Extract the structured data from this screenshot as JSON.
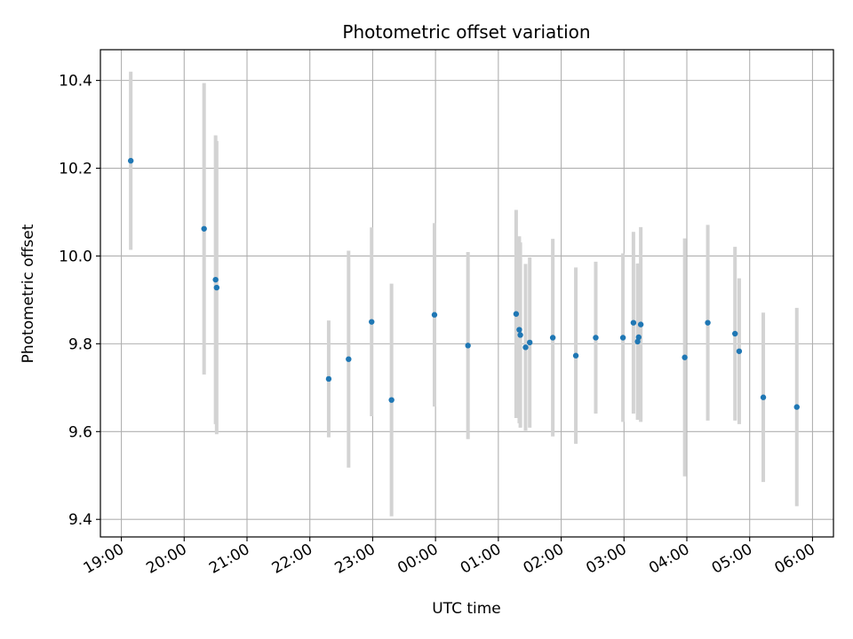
{
  "chart_data": {
    "type": "scatter",
    "title": "Photometric offset variation",
    "xlabel": "UTC time",
    "ylabel": "Photometric offset",
    "grid": true,
    "x_unit": "hours (UTC), continuing past midnight",
    "xlim": [
      "18:40",
      "06:20"
    ],
    "ylim": [
      9.36,
      10.47
    ],
    "xticks": [
      "19:00",
      "20:00",
      "21:00",
      "22:00",
      "23:00",
      "00:00",
      "01:00",
      "02:00",
      "03:00",
      "04:00",
      "05:00",
      "06:00"
    ],
    "yticks": [
      "9.4",
      "9.6",
      "9.8",
      "10.0",
      "10.2",
      "10.4"
    ],
    "colors": {
      "marker": "#1f77b4",
      "errorbar": "#d3d3d3",
      "grid": "#b0b0b0"
    },
    "points": [
      {
        "x": "19:09",
        "y": 10.217,
        "yerr": 0.203
      },
      {
        "x": "20:19",
        "y": 10.062,
        "yerr": 0.332
      },
      {
        "x": "20:30",
        "y": 9.946,
        "yerr": 0.329
      },
      {
        "x": "20:31",
        "y": 9.928,
        "yerr": 0.334
      },
      {
        "x": "22:18",
        "y": 9.72,
        "yerr": 0.133
      },
      {
        "x": "22:37",
        "y": 9.765,
        "yerr": 0.247
      },
      {
        "x": "22:59",
        "y": 9.85,
        "yerr": 0.215
      },
      {
        "x": "23:18",
        "y": 9.672,
        "yerr": 0.265
      },
      {
        "x": "23:59",
        "y": 9.866,
        "yerr": 0.209
      },
      {
        "x": "00:31",
        "y": 9.796,
        "yerr": 0.213
      },
      {
        "x": "01:17",
        "y": 9.868,
        "yerr": 0.237
      },
      {
        "x": "01:20",
        "y": 9.832,
        "yerr": 0.213
      },
      {
        "x": "01:21",
        "y": 9.82,
        "yerr": 0.211
      },
      {
        "x": "01:26",
        "y": 9.792,
        "yerr": 0.19
      },
      {
        "x": "01:30",
        "y": 9.803,
        "yerr": 0.194
      },
      {
        "x": "01:52",
        "y": 9.814,
        "yerr": 0.225
      },
      {
        "x": "02:14",
        "y": 9.773,
        "yerr": 0.201
      },
      {
        "x": "02:33",
        "y": 9.814,
        "yerr": 0.173
      },
      {
        "x": "02:59",
        "y": 9.814,
        "yerr": 0.192
      },
      {
        "x": "03:09",
        "y": 9.848,
        "yerr": 0.207
      },
      {
        "x": "03:13",
        "y": 9.805,
        "yerr": 0.178
      },
      {
        "x": "03:14",
        "y": 9.815,
        "yerr": 0.168
      },
      {
        "x": "03:16",
        "y": 9.844,
        "yerr": 0.222
      },
      {
        "x": "03:58",
        "y": 9.769,
        "yerr": 0.271
      },
      {
        "x": "04:20",
        "y": 9.848,
        "yerr": 0.223
      },
      {
        "x": "04:46",
        "y": 9.823,
        "yerr": 0.198
      },
      {
        "x": "04:50",
        "y": 9.783,
        "yerr": 0.166
      },
      {
        "x": "05:13",
        "y": 9.678,
        "yerr": 0.193
      },
      {
        "x": "05:45",
        "y": 9.656,
        "yerr": 0.226
      }
    ]
  }
}
